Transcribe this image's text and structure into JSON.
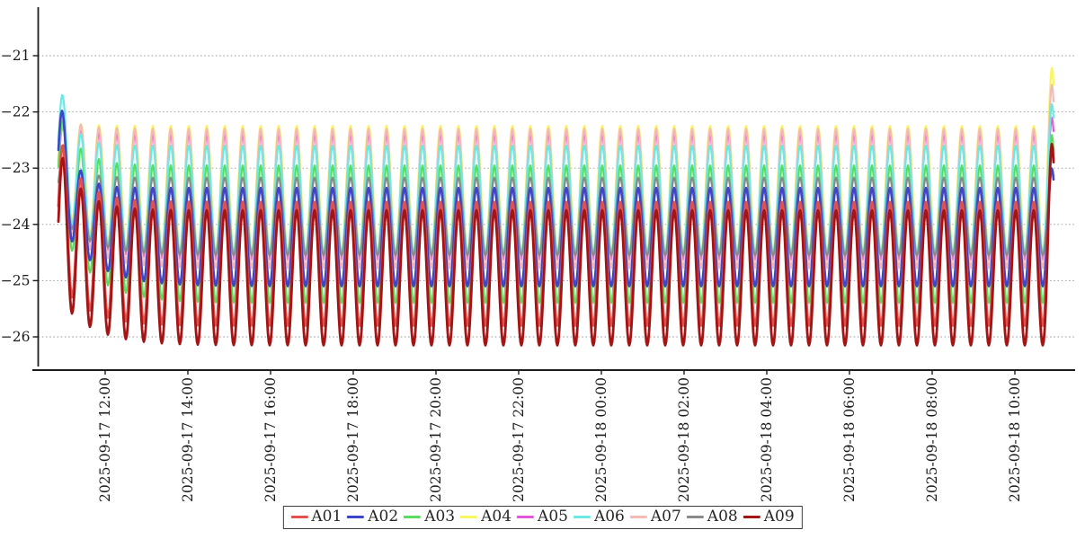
{
  "figure": {
    "background": "#ffffff",
    "title": ""
  },
  "axes": {
    "spine_color": "#1c1c1c",
    "grid_color": "#9a9a9a",
    "tick_label_color": "#1c1c1c",
    "y_ticks": [
      "−21",
      "−22",
      "−23",
      "−24",
      "−25",
      "−26"
    ],
    "y_tick_values": [
      -21,
      -22,
      -23,
      -24,
      -25,
      -26
    ],
    "x_ticks": [
      "2025-09-17 12:00",
      "2025-09-17 14:00",
      "2025-09-17 16:00",
      "2025-09-17 18:00",
      "2025-09-17 20:00",
      "2025-09-17 22:00",
      "2025-09-18 00:00",
      "2025-09-18 02:00",
      "2025-09-18 04:00",
      "2025-09-18 06:00",
      "2025-09-18 08:00",
      "2025-09-18 10:00"
    ]
  },
  "legend": {
    "position": "bottom-center",
    "items": [
      {
        "label": "A01",
        "color": "#e2524d"
      },
      {
        "label": "A02",
        "color": "#3d45c8"
      },
      {
        "label": "A03",
        "color": "#58dd5f"
      },
      {
        "label": "A04",
        "color": "#f8f75e"
      },
      {
        "label": "A05",
        "color": "#e556de"
      },
      {
        "label": "A06",
        "color": "#6ce8e6"
      },
      {
        "label": "A07",
        "color": "#f4bab3"
      },
      {
        "label": "A08",
        "color": "#8a8a8a"
      },
      {
        "label": "A09",
        "color": "#a51414"
      }
    ]
  },
  "chart_data": {
    "type": "line",
    "title": "",
    "xlabel": "",
    "ylabel": "",
    "x_start": "2025-09-17 10:45",
    "x_end": "2025-09-18 11:00",
    "ylim": [
      -26.6,
      -20.1
    ],
    "grid": true,
    "grid_style": "dotted",
    "legend_position": "bottom-center",
    "pattern": "All nine series oscillate in phase with a ~26-minute period (~55 cycles over ~24 h). A short transient at the start (tall first peak near -21.3, shallow troughs) settles within ~2 h to a steady band, and every series spikes sharply upward in the final half-cycle.",
    "oscillation_period_minutes": 26,
    "cycles": 55,
    "draw_order": [
      "A05",
      "A04",
      "A07",
      "A03",
      "A06",
      "A08",
      "A02",
      "A01",
      "A09"
    ],
    "series": [
      {
        "name": "A01",
        "color": "#e2524d",
        "line_width": 2.8,
        "first_peak": -22.35,
        "first_trough": -25.0,
        "steady_peak": -23.6,
        "steady_trough": -25.8,
        "end_value": -22.55,
        "peak_settle_hours": 0.5,
        "trough_settle_hours": 0.7
      },
      {
        "name": "A02",
        "color": "#3d45c8",
        "line_width": 2.6,
        "first_peak": -21.45,
        "first_trough": -23.9,
        "steady_peak": -23.35,
        "steady_trough": -25.1,
        "end_value": -23.0,
        "peak_settle_hours": 0.3,
        "trough_settle_hours": 0.8
      },
      {
        "name": "A03",
        "color": "#58dd5f",
        "line_width": 2.2,
        "first_peak": -21.95,
        "first_trough": -24.0,
        "steady_peak": -22.95,
        "steady_trough": -25.4,
        "end_value": -22.4,
        "peak_settle_hours": 0.45,
        "trough_settle_hours": 0.8
      },
      {
        "name": "A04",
        "color": "#f8f75e",
        "line_width": 2.4,
        "first_peak": -22.15,
        "first_trough": -23.6,
        "steady_peak": -22.25,
        "steady_trough": -24.5,
        "end_value": -21.2,
        "peak_settle_hours": 0.5,
        "trough_settle_hours": 0.7
      },
      {
        "name": "A05",
        "color": "#e556de",
        "line_width": 2.2,
        "first_peak": -22.2,
        "first_trough": -23.7,
        "steady_peak": -22.4,
        "steady_trough": -24.62,
        "end_value": -22.1,
        "peak_settle_hours": 0.5,
        "trough_settle_hours": 0.7
      },
      {
        "name": "A06",
        "color": "#6ce8e6",
        "line_width": 2.2,
        "first_peak": -21.33,
        "first_trough": -23.7,
        "steady_peak": -22.6,
        "steady_trough": -24.5,
        "end_value": -21.85,
        "peak_settle_hours": 0.3,
        "trough_settle_hours": 0.7
      },
      {
        "name": "A07",
        "color": "#f4bab3",
        "line_width": 2.2,
        "first_peak": -22.05,
        "first_trough": -23.8,
        "steady_peak": -22.3,
        "steady_trough": -24.78,
        "end_value": -21.5,
        "peak_settle_hours": 0.45,
        "trough_settle_hours": 0.7
      },
      {
        "name": "A08",
        "color": "#8a8a8a",
        "line_width": 2.2,
        "first_peak": -22.7,
        "first_trough": -23.8,
        "steady_peak": -23.17,
        "steady_trough": -24.55,
        "end_value": -23.0,
        "peak_settle_hours": 0.4,
        "trough_settle_hours": 0.7
      },
      {
        "name": "A09",
        "color": "#a51414",
        "line_width": 2.8,
        "first_peak": -22.6,
        "first_trough": -25.3,
        "steady_peak": -23.75,
        "steady_trough": -26.15,
        "end_value": -22.55,
        "peak_settle_hours": 0.5,
        "trough_settle_hours": 0.8
      }
    ]
  }
}
